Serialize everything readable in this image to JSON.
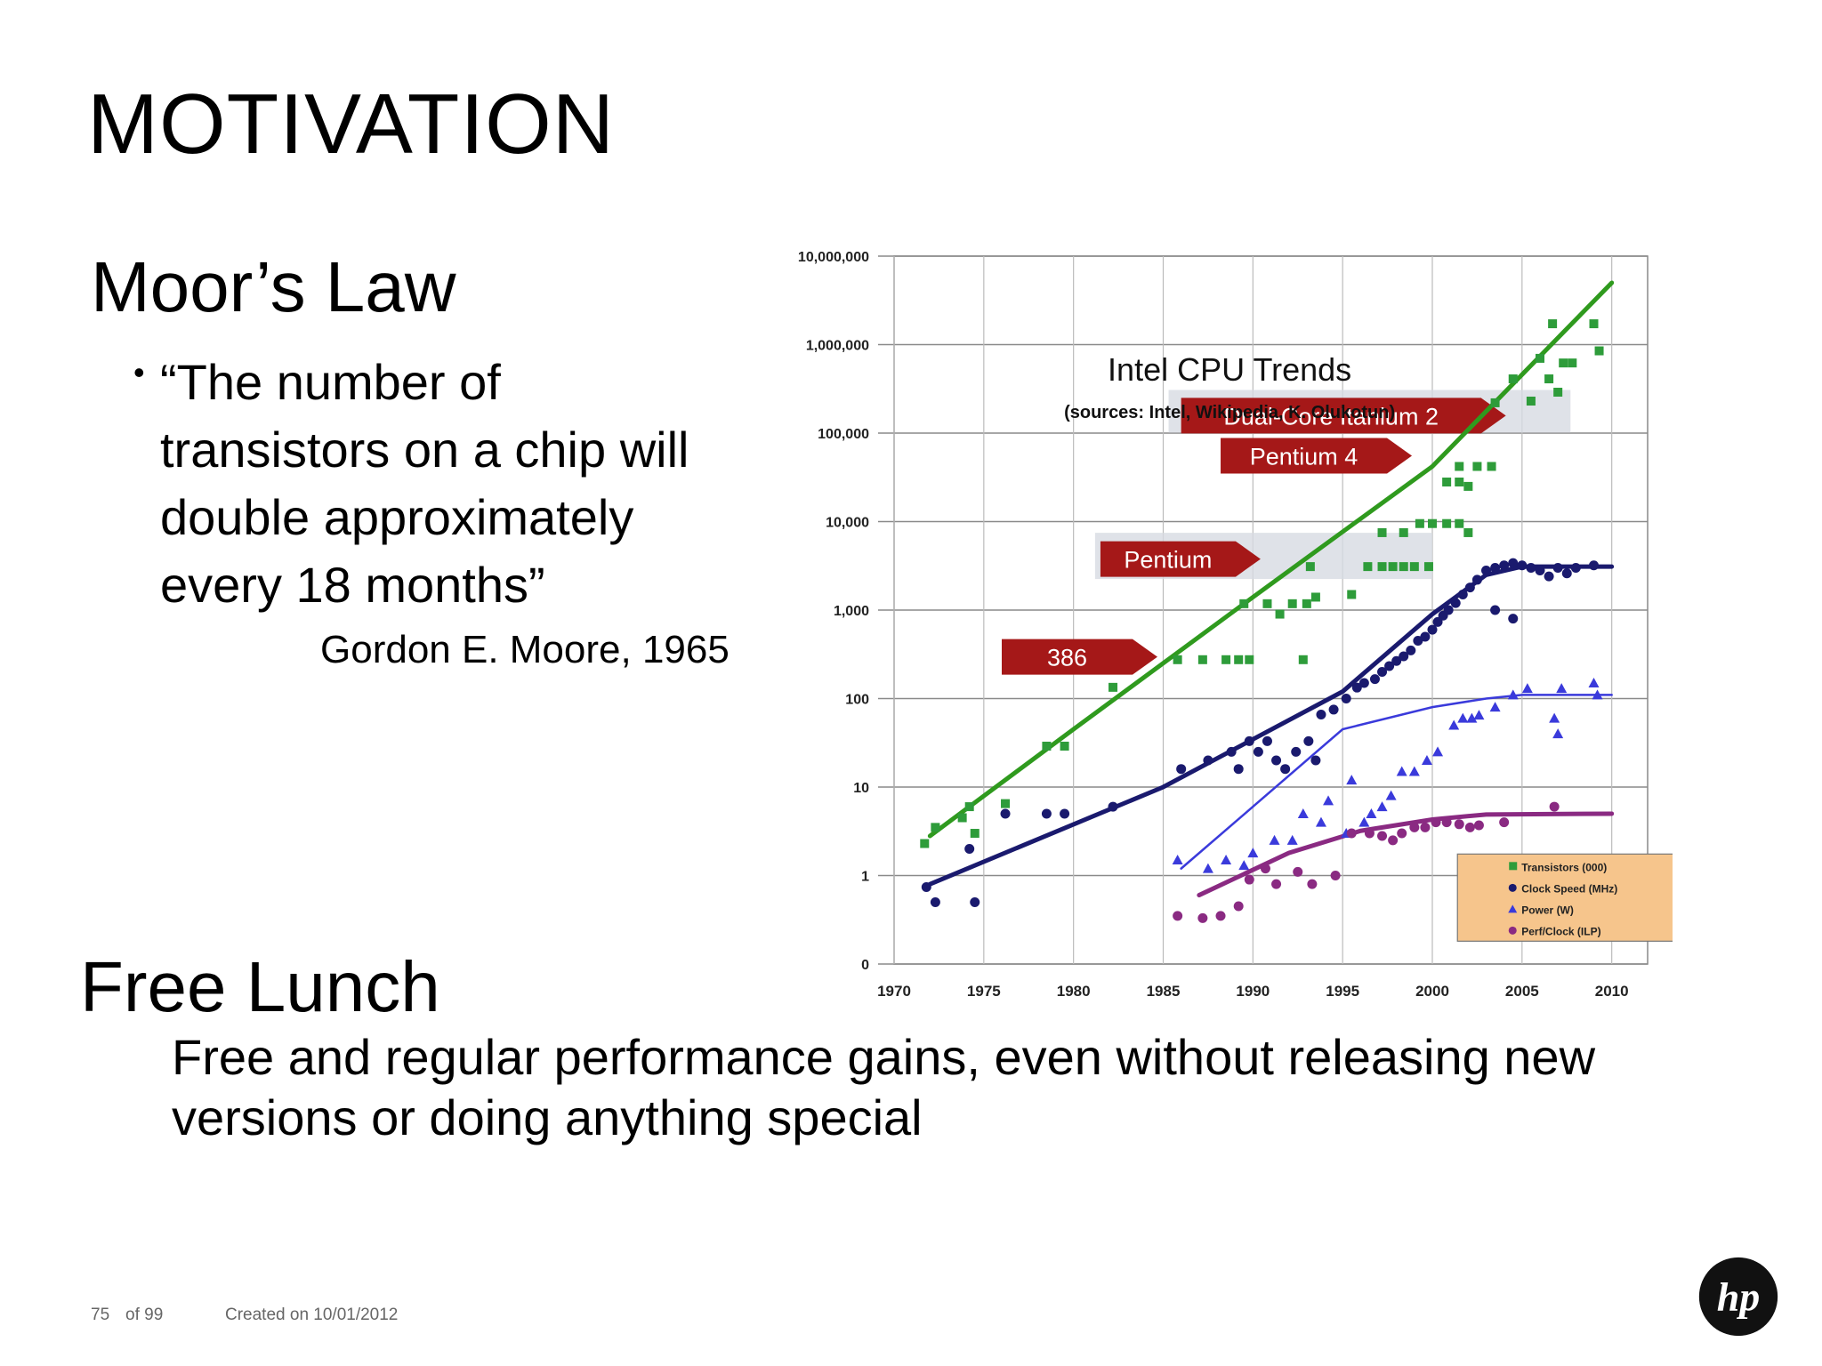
{
  "title": "MOTIVATION",
  "moores_law": {
    "heading": "Moor’s Law",
    "quote": "“The number of\ntransistors on a chip will\ndouble approximately\nevery 18 months”",
    "attribution": "Gordon E. Moore, 1965"
  },
  "free_lunch": {
    "heading": "Free Lunch",
    "body": "Free and regular performance gains, even without releasing new\nversions or doing anything special"
  },
  "footer": {
    "page": "75",
    "of_total": "of 99",
    "created": "Created on 10/01/2012"
  },
  "colors": {
    "transistors": "#2e9c3a",
    "transistor_line": "#2f9a1e",
    "clock": "#1a1a6e",
    "power": "#3a3adb",
    "perf": "#8a2a82",
    "banner": "#a51818",
    "legend_bg": "#f6c58c"
  },
  "chart_data": {
    "type": "scatter",
    "title": "Intel CPU Trends",
    "subtitle": "(sources: Intel, Wikipedia, K. Olukotun)",
    "xlim": [
      1970,
      2012
    ],
    "y_scale": "log",
    "x_ticks": [
      "1970",
      "1975",
      "1980",
      "1985",
      "1990",
      "1995",
      "2000",
      "2005",
      "2010"
    ],
    "y_ticks": [
      "0",
      "1",
      "10",
      "100",
      "1,000",
      "10,000",
      "100,000",
      "1,000,000",
      "10,000,000"
    ],
    "grid": true,
    "legend_position": "bottom-right",
    "legend": [
      "Transistors (000)",
      "Clock Speed (MHz)",
      "Power (W)",
      "Perf/Clock (ILP)"
    ],
    "annotations": [
      {
        "label": "386",
        "x": 1986
      },
      {
        "label": "Pentium",
        "x": 1993
      },
      {
        "label": "Pentium 4",
        "x": 2000
      },
      {
        "label": "Dual-Core Itanium 2",
        "x": 2006
      }
    ],
    "series": [
      {
        "name": "Transistors (000)",
        "marker": "square",
        "points": [
          [
            1971.7,
            2.3
          ],
          [
            1972.3,
            3.5
          ],
          [
            1973.8,
            4.5
          ],
          [
            1974.2,
            6
          ],
          [
            1974.5,
            3
          ],
          [
            1976.2,
            6.5
          ],
          [
            1978.5,
            29
          ],
          [
            1979.5,
            29
          ],
          [
            1982.2,
            134
          ],
          [
            1985.8,
            275
          ],
          [
            1987.2,
            275
          ],
          [
            1988.5,
            275
          ],
          [
            1989.2,
            275
          ],
          [
            1989.8,
            275
          ],
          [
            1989.5,
            1180
          ],
          [
            1990.8,
            1180
          ],
          [
            1991.5,
            900
          ],
          [
            1992.2,
            1180
          ],
          [
            1993,
            1180
          ],
          [
            1993.5,
            1400
          ],
          [
            1993.2,
            3100
          ],
          [
            1992.8,
            275
          ],
          [
            1995.5,
            1500
          ],
          [
            1996.4,
            3100
          ],
          [
            1997.2,
            3100
          ],
          [
            1997.8,
            3100
          ],
          [
            1998.4,
            3100
          ],
          [
            1999,
            3100
          ],
          [
            1999.8,
            3100
          ],
          [
            1997.2,
            7500
          ],
          [
            1998.4,
            7500
          ],
          [
            1999.3,
            9500
          ],
          [
            2000,
            9500
          ],
          [
            2000.8,
            9500
          ],
          [
            2001.5,
            9500
          ],
          [
            2002,
            7500
          ],
          [
            2000.8,
            28000
          ],
          [
            2001.5,
            28000
          ],
          [
            2002,
            25000
          ],
          [
            2001.5,
            42000
          ],
          [
            2002.5,
            42000
          ],
          [
            2003.3,
            42000
          ],
          [
            2003.5,
            220000
          ],
          [
            2004.5,
            410000
          ],
          [
            2005.5,
            230000
          ],
          [
            2006.5,
            410000
          ],
          [
            2007,
            290000
          ],
          [
            2006,
            700000
          ],
          [
            2007.3,
            620000
          ],
          [
            2007.8,
            620000
          ],
          [
            2009,
            1720000
          ],
          [
            2009.3,
            850000
          ],
          [
            2006.7,
            1720000
          ]
        ]
      },
      {
        "name": "Clock Speed (MHz)",
        "marker": "circle",
        "points": [
          [
            1971.8,
            0.74
          ],
          [
            1972.3,
            0.5
          ],
          [
            1974.2,
            2
          ],
          [
            1974.5,
            0.5
          ],
          [
            1976.2,
            5
          ],
          [
            1978.5,
            5
          ],
          [
            1979.5,
            5
          ],
          [
            1982.2,
            6
          ],
          [
            1986,
            16
          ],
          [
            1987.5,
            20
          ],
          [
            1988.8,
            25
          ],
          [
            1989.2,
            16
          ],
          [
            1989.8,
            33
          ],
          [
            1990.3,
            25
          ],
          [
            1990.8,
            33
          ],
          [
            1991.3,
            20
          ],
          [
            1991.8,
            16
          ],
          [
            1992.4,
            25
          ],
          [
            1993.1,
            33
          ],
          [
            1993.5,
            20
          ],
          [
            1993.8,
            66
          ],
          [
            1994.5,
            75
          ],
          [
            1995.2,
            100
          ],
          [
            1995.8,
            133
          ],
          [
            1996.2,
            150
          ],
          [
            1996.8,
            166
          ],
          [
            1997.2,
            200
          ],
          [
            1997.6,
            233
          ],
          [
            1998,
            266
          ],
          [
            1998.4,
            300
          ],
          [
            1998.8,
            350
          ],
          [
            1999.2,
            450
          ],
          [
            1999.6,
            500
          ],
          [
            2000,
            600
          ],
          [
            2000.3,
            733
          ],
          [
            2000.6,
            866
          ],
          [
            2000.9,
            1000
          ],
          [
            2001.3,
            1200
          ],
          [
            2001.7,
            1500
          ],
          [
            2002.1,
            1800
          ],
          [
            2002.5,
            2200
          ],
          [
            2003,
            2800
          ],
          [
            2003.5,
            3000
          ],
          [
            2004,
            3200
          ],
          [
            2004.5,
            3400
          ],
          [
            2005,
            3200
          ],
          [
            2005.5,
            3000
          ],
          [
            2006,
            2800
          ],
          [
            2006.5,
            2400
          ],
          [
            2007,
            3000
          ],
          [
            2007.5,
            2600
          ],
          [
            2008,
            3000
          ],
          [
            2009,
            3200
          ],
          [
            2003.5,
            1000
          ],
          [
            2004.5,
            800
          ]
        ]
      },
      {
        "name": "Power (W)",
        "marker": "triangle",
        "points": [
          [
            1985.8,
            1.5
          ],
          [
            1987.5,
            1.2
          ],
          [
            1988.5,
            1.5
          ],
          [
            1989.5,
            1.3
          ],
          [
            1990,
            1.8
          ],
          [
            1991.2,
            2.5
          ],
          [
            1992.2,
            2.5
          ],
          [
            1992.8,
            5
          ],
          [
            1993.8,
            4
          ],
          [
            1994.2,
            7
          ],
          [
            1995.2,
            3
          ],
          [
            1995.5,
            12
          ],
          [
            1996.2,
            4
          ],
          [
            1996.6,
            5
          ],
          [
            1997.2,
            6
          ],
          [
            1997.7,
            8
          ],
          [
            1998.3,
            15
          ],
          [
            1999,
            15
          ],
          [
            1999.7,
            20
          ],
          [
            2000.3,
            25
          ],
          [
            2001.2,
            50
          ],
          [
            2001.7,
            60
          ],
          [
            2002.2,
            60
          ],
          [
            2002.6,
            65
          ],
          [
            2003.5,
            80
          ],
          [
            2004.5,
            110
          ],
          [
            2005.3,
            130
          ],
          [
            2006.8,
            60
          ],
          [
            2007,
            40
          ],
          [
            2007.2,
            130
          ],
          [
            2009,
            150
          ],
          [
            2009.2,
            110
          ]
        ]
      },
      {
        "name": "Perf/Clock (ILP)",
        "marker": "circle",
        "points": [
          [
            1985.8,
            0.35
          ],
          [
            1987.2,
            0.33
          ],
          [
            1988.2,
            0.35
          ],
          [
            1989.2,
            0.45
          ],
          [
            1989.8,
            0.9
          ],
          [
            1990.7,
            1.2
          ],
          [
            1991.3,
            0.8
          ],
          [
            1992.5,
            1.1
          ],
          [
            1993.3,
            0.8
          ],
          [
            1994.6,
            1
          ],
          [
            1995.5,
            3
          ],
          [
            1996.5,
            3
          ],
          [
            1997.2,
            2.8
          ],
          [
            1997.8,
            2.5
          ],
          [
            1998.3,
            3
          ],
          [
            1999,
            3.5
          ],
          [
            1999.6,
            3.5
          ],
          [
            2000.2,
            4
          ],
          [
            2000.8,
            4
          ],
          [
            2001.5,
            3.8
          ],
          [
            2002.1,
            3.5
          ],
          [
            2002.6,
            3.7
          ],
          [
            2004,
            4
          ],
          [
            2006.8,
            6
          ]
        ]
      }
    ],
    "trend_lines": [
      {
        "name": "Transistors (000)",
        "points": [
          [
            1972,
            2.8
          ],
          [
            1980,
            45
          ],
          [
            1990,
            1400
          ],
          [
            2000,
            42000
          ],
          [
            2010,
            5000000
          ]
        ]
      },
      {
        "name": "Clock Speed (MHz)",
        "points": [
          [
            1972,
            0.8
          ],
          [
            1985,
            10
          ],
          [
            1995,
            120
          ],
          [
            2000,
            900
          ],
          [
            2003,
            2500
          ],
          [
            2005,
            3100
          ],
          [
            2010,
            3100
          ]
        ]
      },
      {
        "name": "Power (W)",
        "points": [
          [
            1986,
            1.2
          ],
          [
            1990,
            6
          ],
          [
            1995,
            45
          ],
          [
            2000,
            80
          ],
          [
            2003,
            100
          ],
          [
            2005,
            110
          ],
          [
            2010,
            110
          ]
        ]
      },
      {
        "name": "Perf/Clock (ILP)",
        "points": [
          [
            1987,
            0.6
          ],
          [
            1992,
            1.8
          ],
          [
            1996,
            3.2
          ],
          [
            2000,
            4.3
          ],
          [
            2003,
            4.9
          ],
          [
            2010,
            5
          ]
        ]
      }
    ]
  }
}
